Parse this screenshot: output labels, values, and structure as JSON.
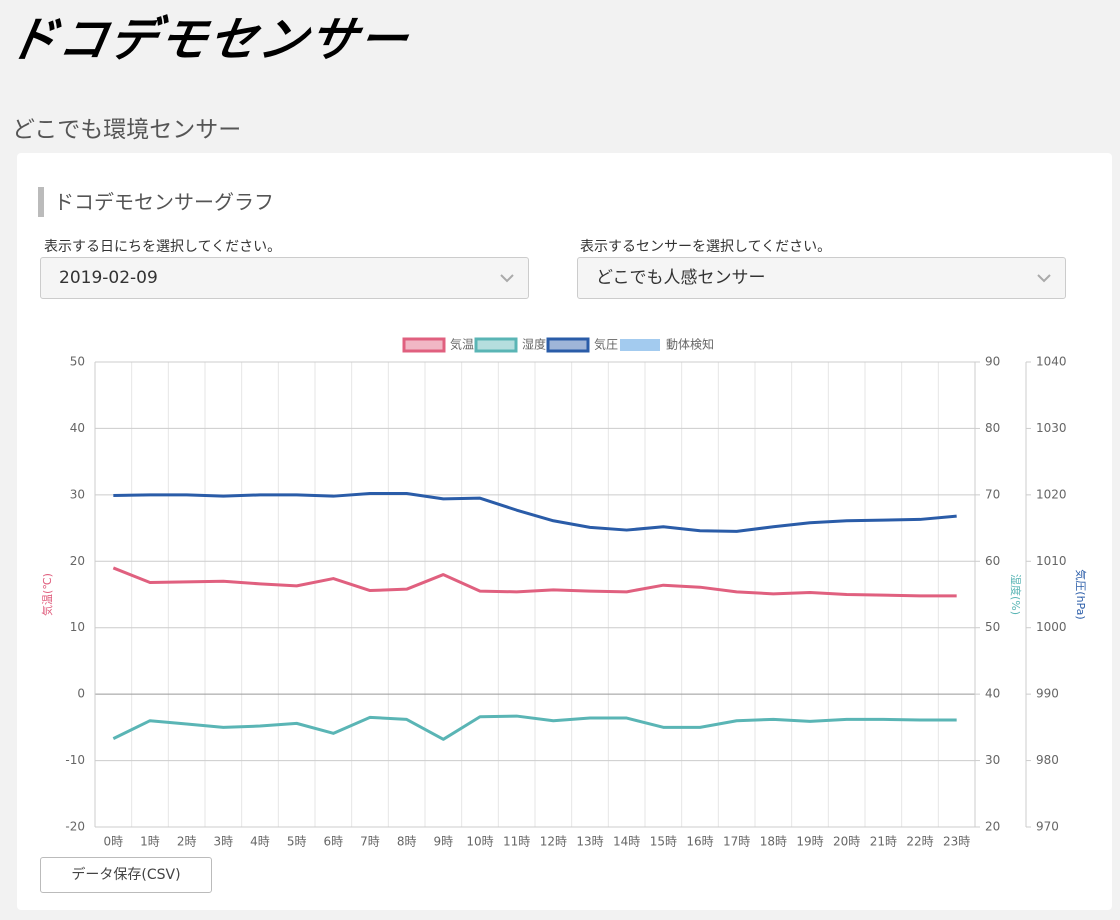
{
  "header": {
    "logo": "ドコデモセンサー"
  },
  "page_title": "どこでも環境センサー",
  "card": {
    "title": "ドコデモセンサーグラフ",
    "date_label": "表示する日にちを選択してください。",
    "date_value": "2019-02-09",
    "sensor_label": "表示するセンサーを選択してください。",
    "sensor_value": "どこでも人感センサー",
    "csv_button": "データ保存(CSV)"
  },
  "chart_data": {
    "type": "line",
    "categories": [
      "0時",
      "1時",
      "2時",
      "3時",
      "4時",
      "5時",
      "6時",
      "7時",
      "8時",
      "9時",
      "10時",
      "11時",
      "12時",
      "13時",
      "14時",
      "15時",
      "16時",
      "17時",
      "18時",
      "19時",
      "20時",
      "21時",
      "22時",
      "23時"
    ],
    "series": [
      {
        "name": "気温",
        "color": "#e0607f",
        "axis": "y",
        "values": [
          19.0,
          16.8,
          16.9,
          17.0,
          16.6,
          16.3,
          17.4,
          15.6,
          15.8,
          18.0,
          15.5,
          15.4,
          15.7,
          15.5,
          15.4,
          16.4,
          16.1,
          15.4,
          15.1,
          15.3,
          15.0,
          14.9,
          14.8,
          14.8
        ]
      },
      {
        "name": "湿度",
        "color": "#5ab5b5",
        "axis": "y2",
        "values": [
          33.3,
          36.0,
          35.5,
          35.0,
          35.2,
          35.6,
          34.1,
          36.5,
          36.2,
          33.2,
          36.6,
          36.7,
          36.0,
          36.4,
          36.4,
          35.0,
          35.0,
          36.0,
          36.2,
          35.9,
          36.2,
          36.2,
          36.1,
          36.1
        ]
      },
      {
        "name": "気圧",
        "color": "#2a5ca8",
        "axis": "y3",
        "values": [
          1019.9,
          1020.0,
          1020.0,
          1019.8,
          1020.0,
          1020.0,
          1019.8,
          1020.2,
          1020.2,
          1019.4,
          1019.5,
          1017.7,
          1016.1,
          1015.1,
          1014.7,
          1015.2,
          1014.6,
          1014.5,
          1015.2,
          1015.8,
          1016.1,
          1016.2,
          1016.3,
          1016.8
        ]
      },
      {
        "name": "動体検知",
        "color": "#a3cbef",
        "axis": "y",
        "values": [
          null,
          null,
          null,
          null,
          null,
          null,
          null,
          null,
          null,
          null,
          null,
          null,
          null,
          null,
          null,
          null,
          null,
          null,
          null,
          null,
          null,
          null,
          null,
          null
        ]
      }
    ],
    "y_label": "気温(℃)",
    "y2_label": "湿度(%)",
    "y3_label": "気圧(hPa)",
    "ylim": [
      -20,
      50
    ],
    "yticks": [
      -20,
      -10,
      0,
      10,
      20,
      30,
      40,
      50
    ],
    "y2lim": [
      20,
      90
    ],
    "y2ticks": [
      20,
      30,
      40,
      50,
      60,
      70,
      80,
      90
    ],
    "y3lim": [
      970,
      1040
    ],
    "y3ticks": [
      970,
      980,
      990,
      1000,
      1010,
      1020,
      1030,
      1040
    ],
    "grid": true,
    "legend": "top"
  }
}
